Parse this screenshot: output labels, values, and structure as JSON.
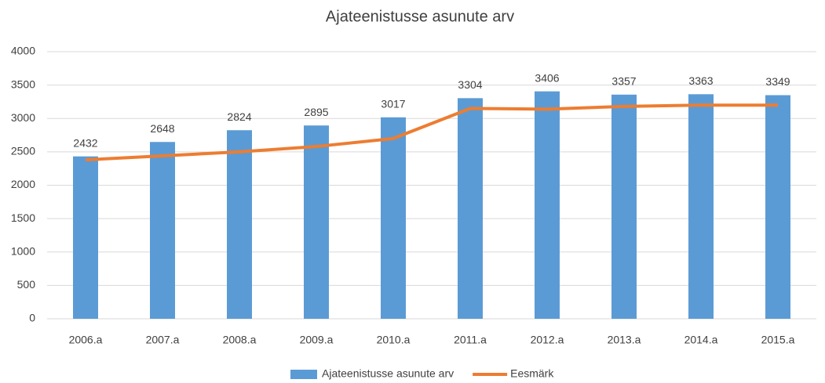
{
  "chart_data": {
    "type": "bar",
    "title": "Ajateenistusse asunute arv",
    "categories": [
      "2006.a",
      "2007.a",
      "2008.a",
      "2009.a",
      "2010.a",
      "2011.a",
      "2012.a",
      "2013.a",
      "2014.a",
      "2015.a"
    ],
    "series": [
      {
        "name": "Ajateenistusse asunute arv",
        "type": "bar",
        "color": "#5b9bd5",
        "values": [
          2432,
          2648,
          2824,
          2895,
          3017,
          3304,
          3406,
          3357,
          3363,
          3349
        ],
        "data_labels": true
      },
      {
        "name": "Eesmärk",
        "type": "line",
        "color": "#ed7d31",
        "values": [
          2380,
          2440,
          2500,
          2580,
          2700,
          3150,
          3140,
          3180,
          3200,
          3200
        ]
      }
    ],
    "ylim": [
      0,
      4000
    ],
    "yticks": [
      0,
      500,
      1000,
      1500,
      2000,
      2500,
      3000,
      3500,
      4000
    ],
    "grid": true,
    "legend": "bottom"
  }
}
